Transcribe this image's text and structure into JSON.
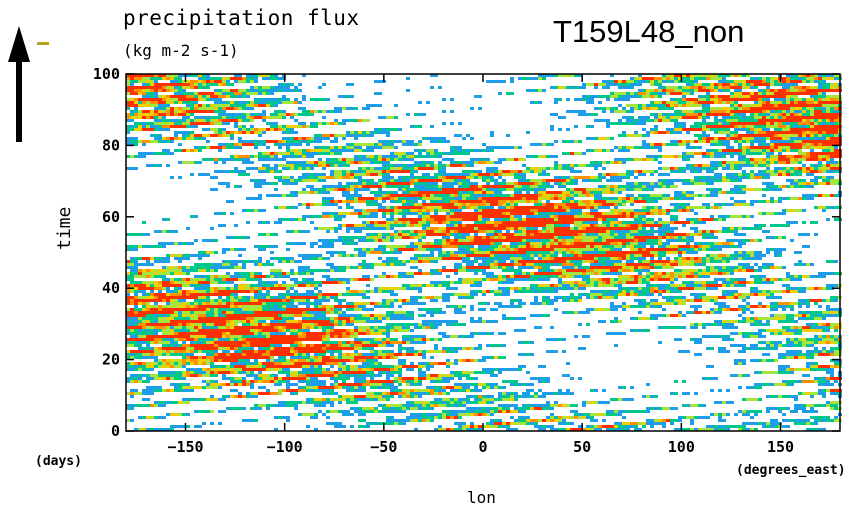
{
  "chart_data": {
    "type": "heatmap",
    "title": "precipitation flux",
    "units": "(kg m-2 s-1)",
    "run_label": "T159L48_non",
    "ylabel": "time",
    "xlabel": "lon",
    "y_units": "(days)",
    "x_units": "(degrees_east)",
    "xlim": [
      -180,
      180
    ],
    "ylim": [
      0,
      100
    ],
    "x_ticks": [
      -150,
      -100,
      -50,
      0,
      50,
      100,
      150
    ],
    "y_ticks": [
      0,
      20,
      40,
      60,
      80,
      100
    ],
    "x_tick_labels": [
      "−150",
      "−100",
      "−50",
      "0",
      "50",
      "100",
      "150"
    ],
    "y_tick_labels": [
      "0",
      "20",
      "40",
      "60",
      "80",
      "100"
    ],
    "contour_colors": [
      "#ffffff",
      "#1e9ee8",
      "#00c88c",
      "#a6e63c",
      "#f0d000",
      "#ff9000",
      "#ff3000"
    ],
    "pattern": "eastward-propagating precipitation streaks (slanted bands, Hovmoller diagram)"
  },
  "colors": {
    "arrow": "#000000",
    "header_dash": "#b8a020",
    "axis": "#000000"
  }
}
